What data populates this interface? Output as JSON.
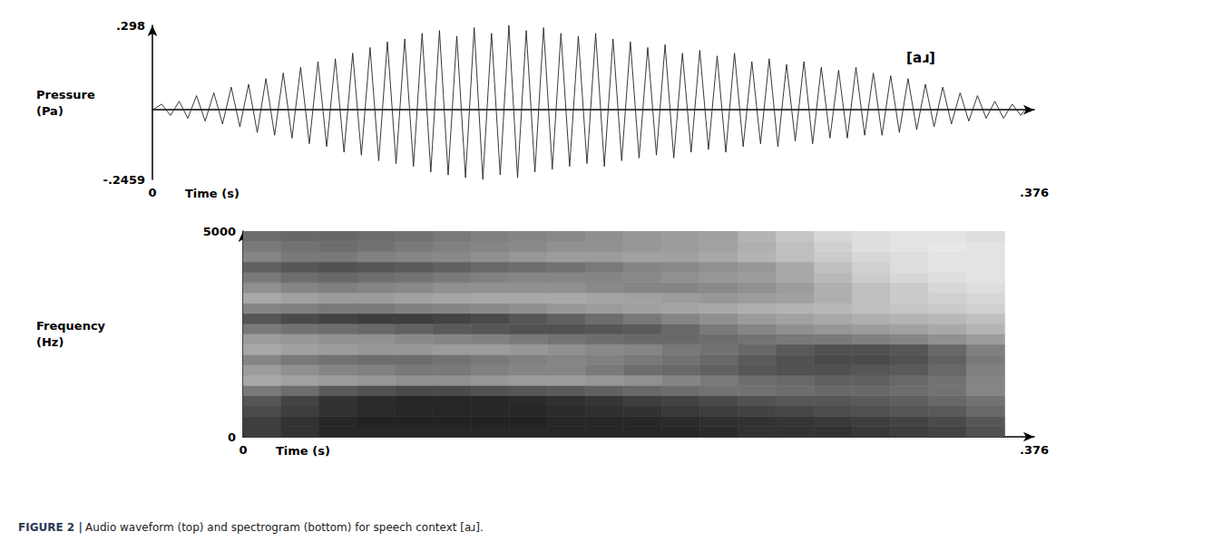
{
  "chart_data": [
    {
      "type": "line",
      "xlabel": "Time (s)",
      "ylabel": "Pressure (Pa)",
      "annotation": "[aɹ]",
      "color": "#222222",
      "grid": false,
      "xlim": [
        0,
        0.376
      ],
      "xticks": [
        0,
        {
          "value": 0.376,
          "label": ".376"
        }
      ],
      "ylim": [
        -0.2459,
        0.298
      ],
      "yticks": [
        {
          "value": -0.2459,
          "label": "-.2459"
        },
        {
          "value": 0.298,
          "label": ".298"
        }
      ],
      "x": [
        0,
        0.004,
        0.0077,
        0.0114,
        0.0151,
        0.0188,
        0.0225,
        0.0262,
        0.0299,
        0.0336,
        0.0373,
        0.041,
        0.0447,
        0.0484,
        0.0521,
        0.0558,
        0.0595,
        0.0632,
        0.0669,
        0.0706,
        0.0743,
        0.078,
        0.0817,
        0.0854,
        0.0891,
        0.0928,
        0.0965,
        0.1002,
        0.1039,
        0.1076,
        0.1113,
        0.115,
        0.1187,
        0.1224,
        0.1261,
        0.1298,
        0.1335,
        0.1372,
        0.1409,
        0.1446,
        0.1483,
        0.152,
        0.1557,
        0.1594,
        0.1631,
        0.1668,
        0.1705,
        0.1742,
        0.1779,
        0.1816,
        0.1853,
        0.189,
        0.1927,
        0.1964,
        0.2001,
        0.2038,
        0.2075,
        0.2112,
        0.2149,
        0.2186,
        0.2223,
        0.226,
        0.2297,
        0.2334,
        0.2371,
        0.2408,
        0.2445,
        0.2482,
        0.2519,
        0.2556,
        0.2593,
        0.263,
        0.2667,
        0.2704,
        0.2741,
        0.2778,
        0.2815,
        0.2852,
        0.2889,
        0.2926,
        0.2963,
        0.3,
        0.3037,
        0.3074,
        0.3111,
        0.3148,
        0.3185,
        0.3222,
        0.3259,
        0.3296,
        0.3333,
        0.337,
        0.3407,
        0.3444,
        0.3481,
        0.3518,
        0.3555,
        0.3592,
        0.3629,
        0.3666,
        0.3703,
        0.372
      ],
      "values": [
        0,
        0.02,
        -0.02,
        0.03,
        -0.03,
        0.05,
        -0.04,
        0.06,
        -0.05,
        0.08,
        -0.06,
        0.09,
        -0.08,
        0.11,
        -0.09,
        0.13,
        -0.1,
        0.15,
        -0.12,
        0.17,
        -0.13,
        0.18,
        -0.15,
        0.2,
        -0.16,
        0.22,
        -0.18,
        0.24,
        -0.19,
        0.25,
        -0.2,
        0.27,
        -0.22,
        0.28,
        -0.23,
        0.26,
        -0.24,
        0.29,
        -0.2459,
        0.27,
        -0.23,
        0.298,
        -0.24,
        0.28,
        -0.22,
        0.29,
        -0.21,
        0.27,
        -0.2,
        0.26,
        -0.19,
        0.27,
        -0.2,
        0.25,
        -0.18,
        0.24,
        -0.17,
        0.22,
        -0.16,
        0.23,
        -0.17,
        0.2,
        -0.15,
        0.21,
        -0.14,
        0.19,
        -0.15,
        0.2,
        -0.13,
        0.17,
        -0.12,
        0.18,
        -0.13,
        0.16,
        -0.11,
        0.17,
        -0.12,
        0.15,
        -0.1,
        0.14,
        -0.1,
        0.15,
        -0.09,
        0.13,
        -0.09,
        0.12,
        -0.08,
        0.11,
        -0.07,
        0.09,
        -0.06,
        0.08,
        -0.05,
        0.06,
        -0.04,
        0.05,
        -0.03,
        0.03,
        -0.03,
        0.02,
        -0.02,
        0
      ]
    },
    {
      "type": "heatmap",
      "xlabel": "Time (s)",
      "ylabel": "Frequency (Hz)",
      "grid": false,
      "xlim": [
        0,
        0.376
      ],
      "xticks": [
        0,
        {
          "value": 0.376,
          "label": ".376"
        }
      ],
      "ylim": [
        0,
        5000
      ],
      "yticks": [
        0,
        5000
      ],
      "cell_range": [
        0,
        1
      ],
      "time_bins": [
        0,
        0.0181,
        0.0362,
        0.0543,
        0.0724,
        0.0905,
        0.1086,
        0.1267,
        0.1448,
        0.1629,
        0.181,
        0.1991,
        0.2172,
        0.2353,
        0.2534,
        0.2715,
        0.2896,
        0.3077,
        0.3258,
        0.3439,
        0.362
      ],
      "frequency_bins": [
        0,
        250,
        500,
        750,
        1000,
        1250,
        1500,
        1750,
        2000,
        2250,
        2500,
        2750,
        3000,
        3250,
        3500,
        3750,
        4000,
        4250,
        4500,
        4750,
        5000
      ],
      "cells": [
        [
          0.8,
          0.85,
          0.9,
          0.9,
          0.9,
          0.9,
          0.9,
          0.9,
          0.9,
          0.9,
          0.9,
          0.9,
          0.88,
          0.85,
          0.85,
          0.85,
          0.82,
          0.8,
          0.78,
          0.72
        ],
        [
          0.8,
          0.85,
          0.9,
          0.92,
          0.92,
          0.92,
          0.92,
          0.92,
          0.9,
          0.9,
          0.9,
          0.88,
          0.86,
          0.85,
          0.84,
          0.82,
          0.8,
          0.78,
          0.75,
          0.7
        ],
        [
          0.75,
          0.8,
          0.85,
          0.88,
          0.9,
          0.9,
          0.9,
          0.9,
          0.88,
          0.86,
          0.85,
          0.82,
          0.8,
          0.78,
          0.76,
          0.74,
          0.72,
          0.7,
          0.68,
          0.62
        ],
        [
          0.7,
          0.78,
          0.85,
          0.88,
          0.9,
          0.9,
          0.9,
          0.88,
          0.86,
          0.84,
          0.8,
          0.78,
          0.75,
          0.72,
          0.7,
          0.7,
          0.68,
          0.66,
          0.62,
          0.58
        ],
        [
          0.55,
          0.6,
          0.68,
          0.72,
          0.75,
          0.75,
          0.72,
          0.7,
          0.68,
          0.65,
          0.62,
          0.6,
          0.58,
          0.58,
          0.6,
          0.62,
          0.62,
          0.6,
          0.58,
          0.5
        ],
        [
          0.35,
          0.38,
          0.4,
          0.42,
          0.45,
          0.45,
          0.42,
          0.4,
          0.4,
          0.42,
          0.45,
          0.5,
          0.55,
          0.6,
          0.62,
          0.65,
          0.65,
          0.62,
          0.58,
          0.5
        ],
        [
          0.4,
          0.45,
          0.5,
          0.52,
          0.55,
          0.55,
          0.52,
          0.5,
          0.5,
          0.55,
          0.6,
          0.62,
          0.65,
          0.7,
          0.72,
          0.72,
          0.7,
          0.68,
          0.62,
          0.52
        ],
        [
          0.5,
          0.55,
          0.58,
          0.6,
          0.6,
          0.58,
          0.55,
          0.52,
          0.5,
          0.52,
          0.55,
          0.58,
          0.62,
          0.68,
          0.72,
          0.75,
          0.75,
          0.72,
          0.65,
          0.55
        ],
        [
          0.35,
          0.38,
          0.4,
          0.42,
          0.42,
          0.4,
          0.4,
          0.42,
          0.45,
          0.48,
          0.5,
          0.55,
          0.58,
          0.62,
          0.68,
          0.72,
          0.72,
          0.7,
          0.62,
          0.52
        ],
        [
          0.4,
          0.42,
          0.45,
          0.45,
          0.48,
          0.5,
          0.52,
          0.55,
          0.58,
          0.6,
          0.62,
          0.62,
          0.6,
          0.58,
          0.55,
          0.55,
          0.52,
          0.5,
          0.45,
          0.4
        ],
        [
          0.55,
          0.58,
          0.6,
          0.62,
          0.65,
          0.68,
          0.7,
          0.72,
          0.72,
          0.7,
          0.68,
          0.62,
          0.55,
          0.5,
          0.45,
          0.42,
          0.4,
          0.38,
          0.35,
          0.3
        ],
        [
          0.7,
          0.75,
          0.78,
          0.8,
          0.8,
          0.78,
          0.75,
          0.7,
          0.65,
          0.6,
          0.55,
          0.5,
          0.45,
          0.4,
          0.38,
          0.35,
          0.32,
          0.3,
          0.28,
          0.25
        ],
        [
          0.5,
          0.52,
          0.55,
          0.55,
          0.52,
          0.5,
          0.48,
          0.45,
          0.42,
          0.4,
          0.38,
          0.36,
          0.35,
          0.32,
          0.3,
          0.28,
          0.25,
          0.22,
          0.2,
          0.18
        ],
        [
          0.35,
          0.38,
          0.4,
          0.4,
          0.38,
          0.36,
          0.35,
          0.35,
          0.35,
          0.36,
          0.38,
          0.4,
          0.42,
          0.4,
          0.38,
          0.32,
          0.25,
          0.2,
          0.18,
          0.15
        ],
        [
          0.45,
          0.5,
          0.52,
          0.5,
          0.48,
          0.45,
          0.45,
          0.45,
          0.45,
          0.48,
          0.5,
          0.5,
          0.48,
          0.45,
          0.4,
          0.32,
          0.25,
          0.2,
          0.15,
          0.12
        ],
        [
          0.55,
          0.6,
          0.62,
          0.6,
          0.58,
          0.55,
          0.52,
          0.5,
          0.5,
          0.5,
          0.48,
          0.45,
          0.42,
          0.4,
          0.35,
          0.28,
          0.2,
          0.15,
          0.12,
          0.1
        ],
        [
          0.65,
          0.7,
          0.72,
          0.7,
          0.68,
          0.65,
          0.62,
          0.6,
          0.58,
          0.55,
          0.5,
          0.48,
          0.45,
          0.42,
          0.35,
          0.25,
          0.18,
          0.12,
          0.1,
          0.1
        ],
        [
          0.5,
          0.55,
          0.55,
          0.52,
          0.5,
          0.48,
          0.45,
          0.42,
          0.4,
          0.4,
          0.38,
          0.38,
          0.35,
          0.3,
          0.25,
          0.2,
          0.15,
          0.12,
          0.1,
          0.1
        ],
        [
          0.55,
          0.58,
          0.6,
          0.58,
          0.55,
          0.52,
          0.5,
          0.48,
          0.45,
          0.45,
          0.42,
          0.4,
          0.38,
          0.32,
          0.25,
          0.18,
          0.12,
          0.1,
          0.08,
          0.1
        ],
        [
          0.6,
          0.62,
          0.62,
          0.6,
          0.58,
          0.55,
          0.52,
          0.5,
          0.48,
          0.45,
          0.42,
          0.4,
          0.38,
          0.3,
          0.22,
          0.15,
          0.12,
          0.1,
          0.1,
          0.12
        ]
      ]
    }
  ],
  "caption": {
    "label": "FIGURE 2 |",
    "text": "Audio waveform (top) and spectrogram (bottom) for speech context [aɹ]."
  }
}
